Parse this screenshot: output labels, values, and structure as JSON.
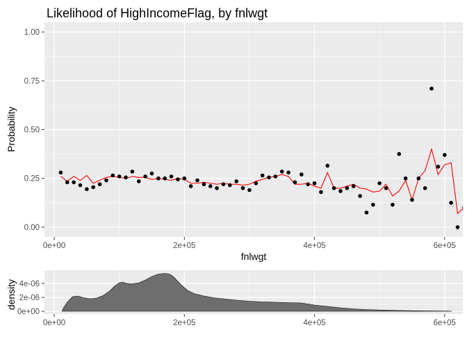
{
  "chart_data": [
    {
      "type": "scatter",
      "title": "Likelihood of HighIncomeFlag, by fnlwgt",
      "xlabel": "fnlwgt",
      "ylabel": "Probability",
      "xlim": [
        -15000,
        628000
      ],
      "ylim": [
        -0.05,
        1.05
      ],
      "grid": true,
      "x_ticks": [
        0,
        200000,
        400000,
        600000
      ],
      "x_tick_labels": [
        "0e+00",
        "2e+05",
        "4e+05",
        "6e+05"
      ],
      "y_ticks": [
        0,
        0.25,
        0.5,
        0.75,
        1.0
      ],
      "y_tick_labels": [
        "0.00",
        "0.25",
        "0.50",
        "0.75",
        "1.00"
      ],
      "colors": {
        "points": "#000000",
        "fit_line": "#ff0000",
        "panel": "#ebebeb",
        "grid": "#ffffff"
      },
      "series": [
        {
          "kind": "points",
          "x": [
            10000,
            20000,
            30000,
            40000,
            50000,
            60000,
            70000,
            80000,
            90000,
            100000,
            110000,
            120000,
            130000,
            140000,
            150000,
            160000,
            170000,
            180000,
            190000,
            200000,
            210000,
            220000,
            230000,
            240000,
            250000,
            260000,
            270000,
            280000,
            290000,
            300000,
            310000,
            320000,
            330000,
            340000,
            350000,
            360000,
            370000,
            380000,
            390000,
            400000,
            410000,
            420000,
            430000,
            440000,
            450000,
            460000,
            470000,
            480000,
            490000,
            500000,
            510000,
            520000,
            530000,
            540000,
            550000,
            560000,
            570000,
            580000,
            590000,
            600000,
            610000,
            620000,
            630000
          ],
          "y": [
            0.28,
            0.23,
            0.23,
            0.215,
            0.195,
            0.205,
            0.22,
            0.24,
            0.265,
            0.26,
            0.255,
            0.285,
            0.235,
            0.26,
            0.275,
            0.25,
            0.25,
            0.26,
            0.245,
            0.25,
            0.21,
            0.24,
            0.22,
            0.21,
            0.2,
            0.22,
            0.215,
            0.235,
            0.2,
            0.19,
            0.225,
            0.265,
            0.255,
            0.26,
            0.285,
            0.28,
            0.23,
            0.27,
            0.22,
            0.225,
            0.18,
            0.315,
            0.2,
            0.185,
            0.2,
            0.21,
            0.16,
            0.075,
            0.115,
            0.225,
            0.2,
            0.115,
            0.375,
            0.25,
            0.14,
            0.25,
            0.2,
            0.71,
            0.31,
            0.37,
            0.125,
            0.0,
            0.1
          ]
        },
        {
          "kind": "line",
          "x": [
            10000,
            20000,
            30000,
            40000,
            50000,
            60000,
            70000,
            80000,
            90000,
            100000,
            110000,
            120000,
            130000,
            140000,
            150000,
            160000,
            170000,
            180000,
            190000,
            200000,
            210000,
            220000,
            230000,
            240000,
            250000,
            260000,
            270000,
            280000,
            290000,
            300000,
            310000,
            320000,
            330000,
            340000,
            350000,
            360000,
            370000,
            380000,
            390000,
            400000,
            410000,
            420000,
            430000,
            440000,
            450000,
            460000,
            470000,
            480000,
            490000,
            500000,
            510000,
            520000,
            530000,
            540000,
            550000,
            560000,
            570000,
            580000,
            590000,
            600000,
            610000,
            620000,
            630000
          ],
          "y": [
            0.26,
            0.235,
            0.26,
            0.24,
            0.265,
            0.225,
            0.24,
            0.255,
            0.26,
            0.255,
            0.25,
            0.26,
            0.255,
            0.255,
            0.245,
            0.25,
            0.245,
            0.24,
            0.25,
            0.245,
            0.225,
            0.225,
            0.23,
            0.225,
            0.22,
            0.225,
            0.22,
            0.22,
            0.215,
            0.22,
            0.235,
            0.245,
            0.255,
            0.26,
            0.27,
            0.26,
            0.22,
            0.22,
            0.225,
            0.21,
            0.2,
            0.28,
            0.2,
            0.2,
            0.21,
            0.22,
            0.2,
            0.195,
            0.18,
            0.185,
            0.22,
            0.16,
            0.185,
            0.24,
            0.14,
            0.25,
            0.29,
            0.4,
            0.27,
            0.32,
            0.33,
            0.07,
            0.1
          ]
        }
      ]
    },
    {
      "type": "area",
      "ylabel": "density",
      "xlim": [
        -15000,
        628000
      ],
      "ylim": [
        0,
        5.5e-06
      ],
      "grid": true,
      "x_ticks": [
        0,
        200000,
        400000,
        600000
      ],
      "x_tick_labels": [
        "0e+00",
        "2e+05",
        "4e+05",
        "6e+05"
      ],
      "y_ticks": [
        0,
        2e-06,
        4e-06
      ],
      "y_tick_labels": [
        "0e+00",
        "2e-06",
        "4e-06"
      ],
      "colors": {
        "fill": "#6e6e6e",
        "outline": "#000000",
        "panel": "#ebebeb",
        "grid": "#ffffff"
      },
      "x": [
        12000,
        14000,
        20000,
        28000,
        36000,
        45000,
        55000,
        65000,
        75000,
        85000,
        92000,
        100000,
        105000,
        112000,
        120000,
        130000,
        140000,
        150000,
        160000,
        170000,
        175000,
        180000,
        185000,
        195000,
        205000,
        215000,
        230000,
        245000,
        260000,
        280000,
        300000,
        320000,
        340000,
        360000,
        380000,
        400000,
        420000,
        440000,
        460000,
        480000,
        500000,
        520000,
        540000,
        560000,
        580000,
        600000,
        610000,
        611000
      ],
      "y": [
        0,
        4.5e-07,
        1.3e-06,
        2.1e-06,
        2.2e-06,
        1.95e-06,
        1.8e-06,
        1.9e-06,
        2.25e-06,
        2.9e-06,
        3.55e-06,
        4.1e-06,
        4.2e-06,
        4e-06,
        3.95e-06,
        4.1e-06,
        4.5e-06,
        5e-06,
        5.35e-06,
        5.45e-06,
        5.4e-06,
        5.2e-06,
        4.8e-06,
        3.8e-06,
        3e-06,
        2.55e-06,
        2.2e-06,
        1.95e-06,
        1.8e-06,
        1.6e-06,
        1.45e-06,
        1.35e-06,
        1.3e-06,
        1.25e-06,
        1.2e-06,
        9e-07,
        7e-07,
        5e-07,
        3.5e-07,
        2.5e-07,
        1.8e-07,
        1.3e-07,
        9e-08,
        6e-08,
        4e-08,
        3e-08,
        2e-08,
        0
      ]
    }
  ]
}
